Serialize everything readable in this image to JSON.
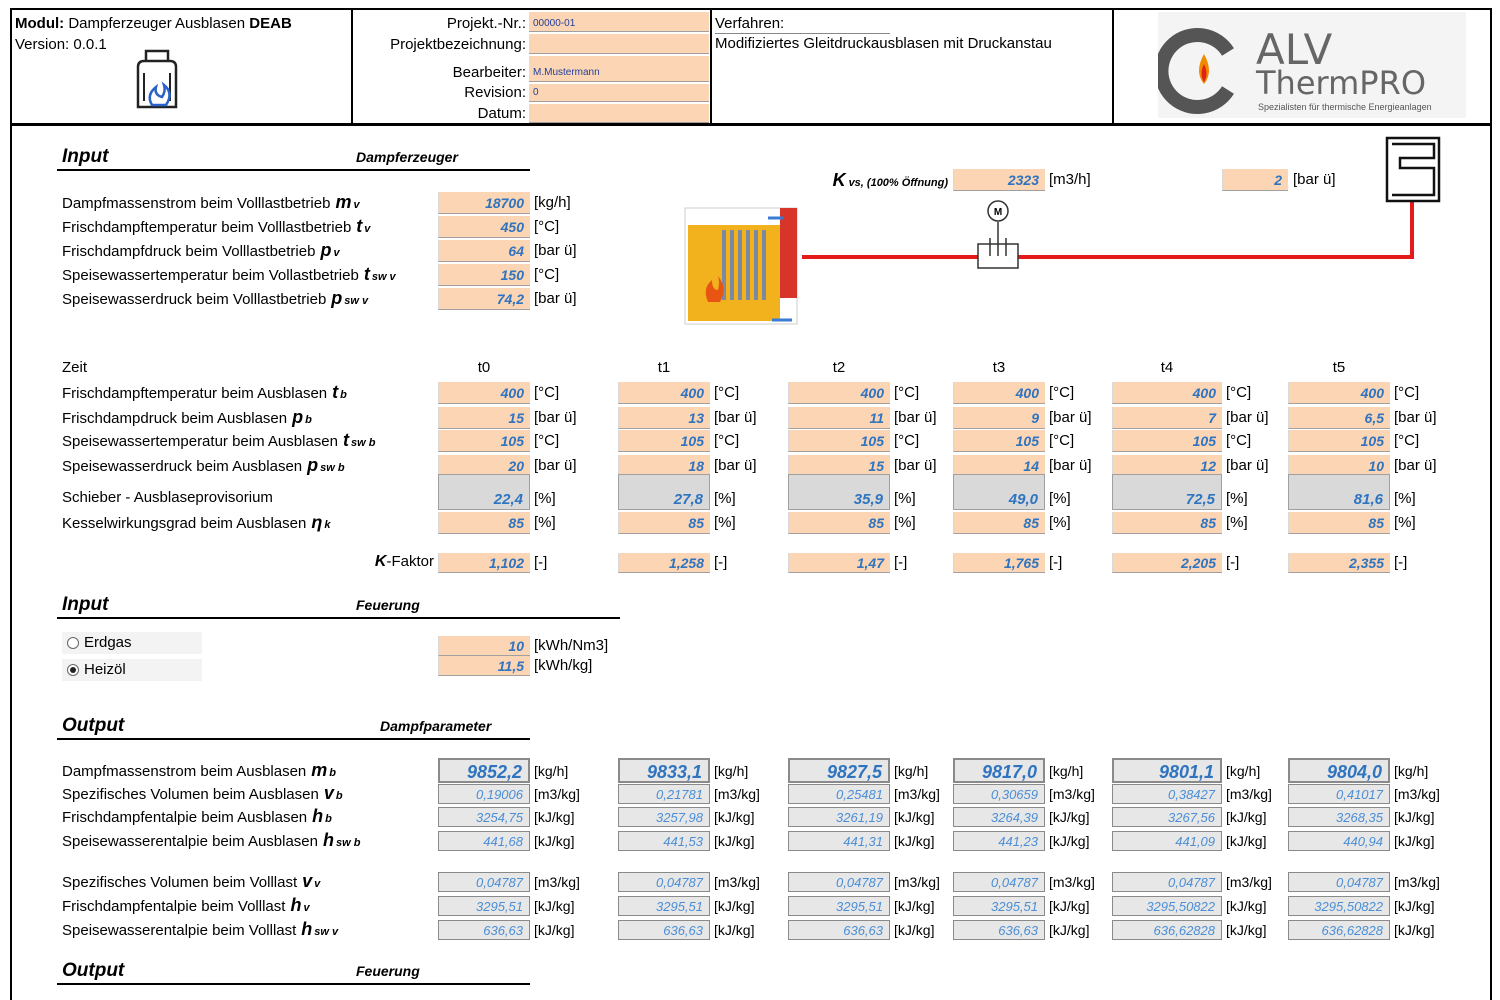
{
  "header": {
    "module_label": "Modul:",
    "module_name": "Dampferzeuger Ausblasen",
    "module_code": "DEAB",
    "version": "Version: 0.0.1",
    "project_fields": [
      {
        "label": "Projekt.-Nr.:",
        "value": "00000-01"
      },
      {
        "label": "Projektbezeichnung:"
      },
      {
        "label": "Bearbeiter:",
        "value": "M.Mustermann"
      },
      {
        "label": "Revision:",
        "value": "0"
      },
      {
        "label": "Datum:"
      }
    ],
    "verfahren_label": "Verfahren:",
    "verfahren": "Modifiziertes Gleitdruckausblasen mit Druckanstau",
    "logo": {
      "brand": "ALV",
      "product": "ThermPRO",
      "tagline": "Spezialisten für thermische Energieanlagen"
    }
  },
  "input_steam": {
    "title": "Input",
    "subtitle": "Dampferzeuger",
    "rows": [
      {
        "label": "Dampfmassenstrom beim Volllastbetrieb",
        "symbol": "m",
        "sub": "v",
        "value": "18700",
        "unit": "[kg/h]"
      },
      {
        "label": "Frischdampftemperatur beim Volllastbetrieb",
        "symbol": "t",
        "sub": "v",
        "value": "450",
        "unit": "[°C]"
      },
      {
        "label": "Frischdampfdruck beim Volllastbetrieb",
        "symbol": "p",
        "sub": "v",
        "value": "64",
        "unit": "[bar ü]"
      },
      {
        "label": "Speisewassertemperatur beim Vollastbetrieb",
        "symbol": "t",
        "sub": "sw v",
        "value": "150",
        "unit": "[°C]"
      },
      {
        "label": "Speisewasserdruck beim Volllastbetrieb",
        "symbol": "p",
        "sub": "sw v",
        "value": "74,2",
        "unit": "[bar ü]"
      }
    ]
  },
  "kvs": {
    "symbol": "K",
    "sub": "vs, (100% Öffnung)",
    "value": "2323",
    "unit": "[m3/h]",
    "pressure": "2",
    "pressure_unit": "[bar ü]"
  },
  "diagram": {
    "motor_label": "M"
  },
  "blowout": {
    "time_label": "Zeit",
    "times": [
      "t0",
      "t1",
      "t2",
      "t3",
      "t4",
      "t5"
    ],
    "rows": [
      {
        "label": "Frischdampftemperatur beim Ausblasen",
        "symbol": "t",
        "sub": "b",
        "values": [
          "400",
          "400",
          "400",
          "400",
          "400",
          "400"
        ],
        "unit": "[°C]"
      },
      {
        "label": "Frischdampdruck beim Ausblasen",
        "symbol": "p",
        "sub": "b",
        "values": [
          "15",
          "13",
          "11",
          "9",
          "7",
          "6,5"
        ],
        "unit": "[bar ü]"
      },
      {
        "label": "Speisewassertemperatur beim Ausblasen",
        "symbol": "t",
        "sub": "sw b",
        "values": [
          "105",
          "105",
          "105",
          "105",
          "105",
          "105"
        ],
        "unit": "[°C]"
      },
      {
        "label": "Speisewasserdruck beim Ausblasen",
        "symbol": "p",
        "sub": "sw b",
        "values": [
          "20",
          "18",
          "15",
          "14",
          "12",
          "10"
        ],
        "unit": "[bar ü]"
      },
      {
        "label": "Schieber - Ausblaseprovisorium",
        "values": [
          "22,4",
          "27,8",
          "35,9",
          "49,0",
          "72,5",
          "81,6"
        ],
        "unit": "[%]"
      },
      {
        "label": "Kesselwirkungsgrad beim Ausblasen",
        "symbol": "η",
        "sub": "k",
        "values": [
          "85",
          "85",
          "85",
          "85",
          "85",
          "85"
        ],
        "unit": "[%]"
      }
    ]
  },
  "k_factor": {
    "symbol": "K",
    "label": "-Faktor",
    "values": [
      "1,102",
      "1,258",
      "1,47",
      "1,765",
      "2,205",
      "2,355"
    ],
    "unit": "[-]"
  },
  "input_firing": {
    "title": "Input",
    "subtitle": "Feuerung",
    "options": [
      {
        "label": "Erdgas",
        "selected": false,
        "value": "10",
        "unit": "[kWh/Nm3]"
      },
      {
        "label": "Heizöl",
        "selected": true,
        "value": "11,5",
        "unit": "[kWh/kg]"
      }
    ]
  },
  "output_steam": {
    "title": "Output",
    "subtitle": "Dampfparameter",
    "rows": [
      {
        "label": "Dampfmassenstrom beim Ausblasen",
        "symbol": "m",
        "sub": "b",
        "values": [
          "9852,2",
          "9833,1",
          "9827,5",
          "9817,0",
          "9801,1",
          "9804,0"
        ],
        "unit": "[kg/h]"
      },
      {
        "label": "Spezifisches Volumen beim Ausblasen",
        "symbol": "v",
        "sub": "b",
        "values": [
          "0,19006",
          "0,21781",
          "0,25481",
          "0,30659",
          "0,38427",
          "0,41017"
        ],
        "unit": "[m3/kg]"
      },
      {
        "label": "Frischdampfentalpie beim Ausblasen",
        "symbol": "h",
        "sub": "b",
        "values": [
          "3254,75",
          "3257,98",
          "3261,19",
          "3264,39",
          "3267,56",
          "3268,35"
        ],
        "unit": "[kJ/kg]"
      },
      {
        "label": "Speisewasserentalpie beim Ausblasen",
        "symbol": "h",
        "sub": "sw b",
        "values": [
          "441,68",
          "441,53",
          "441,31",
          "441,23",
          "441,09",
          "440,94"
        ],
        "unit": "[kJ/kg]"
      },
      {
        "label": "Spezifisches Volumen beim Volllast",
        "symbol": "v",
        "sub": "v",
        "values": [
          "0,04787",
          "0,04787",
          "0,04787",
          "0,04787",
          "0,04787",
          "0,04787"
        ],
        "unit": "[m3/kg]"
      },
      {
        "label": "Frischdampfentalpie beim Volllast",
        "symbol": "h",
        "sub": "v",
        "values": [
          "3295,51",
          "3295,51",
          "3295,51",
          "3295,51",
          "3295,50822",
          "3295,50822"
        ],
        "unit": "[kJ/kg]"
      },
      {
        "label": "Speisewasserentalpie beim Volllast",
        "symbol": "h",
        "sub": "sw v",
        "values": [
          "636,63",
          "636,63",
          "636,63",
          "636,63",
          "636,62828",
          "636,62828"
        ],
        "unit": "[kJ/kg]"
      }
    ]
  },
  "output_firing": {
    "title": "Output",
    "subtitle": "Feuerung"
  }
}
